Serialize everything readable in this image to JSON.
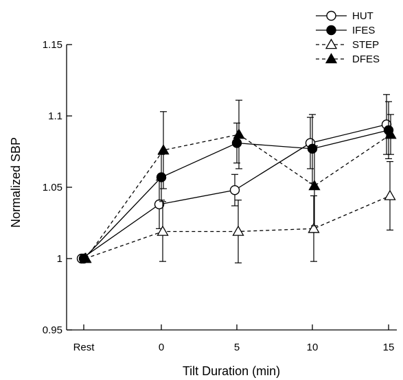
{
  "chart_data": {
    "type": "line",
    "title": "",
    "xlabel": "Tilt Duration (min)",
    "ylabel": "Normalized SBP",
    "categories": [
      "Rest",
      "0",
      "5",
      "10",
      "15"
    ],
    "x_ticks": [
      "Rest",
      "0",
      "5",
      "10",
      "15"
    ],
    "y_ticks": [
      "0.95",
      "1",
      "1.05",
      "1.1",
      "1.15"
    ],
    "ylim": [
      0.95,
      1.15
    ],
    "grid": false,
    "legend_position": "top-right",
    "series": [
      {
        "name": "HUT",
        "marker": "open-circle",
        "line": "solid",
        "values": [
          1.0,
          1.038,
          1.048,
          1.081,
          1.094
        ],
        "errors": [
          0,
          0.017,
          0.011,
          0.018,
          0.021
        ]
      },
      {
        "name": "IFES",
        "marker": "filled-circle",
        "line": "solid",
        "values": [
          1.0,
          1.057,
          1.081,
          1.077,
          1.09
        ],
        "errors": [
          0,
          0.016,
          0.014,
          0.024,
          0.02
        ]
      },
      {
        "name": "STEP",
        "marker": "open-triangle",
        "line": "dashed",
        "values": [
          1.0,
          1.019,
          1.019,
          1.021,
          1.044
        ],
        "errors": [
          0,
          0.021,
          0.022,
          0.023,
          0.024
        ]
      },
      {
        "name": "DFES",
        "marker": "filled-triangle",
        "line": "dashed",
        "values": [
          1.0,
          1.076,
          1.087,
          1.051,
          1.087
        ],
        "errors": [
          0,
          0.027,
          0.024,
          0.028,
          0.014
        ]
      }
    ]
  }
}
